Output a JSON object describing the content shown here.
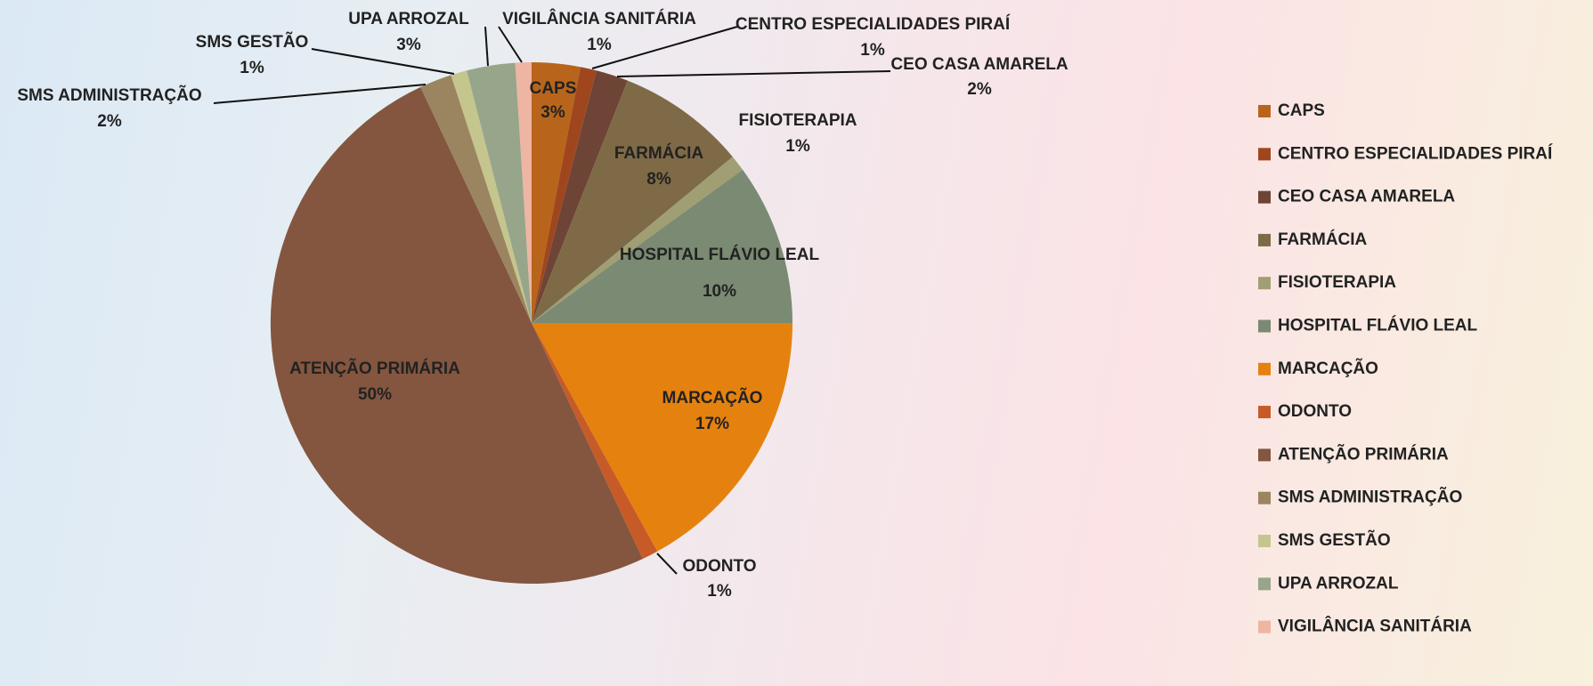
{
  "chart_data": {
    "type": "pie",
    "categories": [
      "CAPS",
      "CENTRO ESPECIALIDADES PIRAÍ",
      "CEO CASA AMARELA",
      "FARMÁCIA",
      "FISIOTERAPIA",
      "HOSPITAL FLÁVIO LEAL",
      "MARCAÇÃO",
      "ODONTO",
      "ATENÇÃO PRIMÁRIA",
      "SMS ADMINISTRAÇÃO",
      "SMS GESTÃO",
      "UPA ARROZAL",
      "VIGILÂNCIA SANITÁRIA"
    ],
    "values": [
      3,
      1,
      2,
      8,
      1,
      10,
      17,
      1,
      50,
      2,
      1,
      3,
      1
    ],
    "value_labels": [
      "3%",
      "1%",
      "2%",
      "8%",
      "1%",
      "10%",
      "17%",
      "1%",
      "50%",
      "2%",
      "1%",
      "3%",
      "1%"
    ],
    "colors": [
      "#b8651b",
      "#a0461f",
      "#6e4436",
      "#7e6a46",
      "#a09f73",
      "#7b8a72",
      "#e5820f",
      "#c65b28",
      "#84563f",
      "#9b8560",
      "#c5c58e",
      "#97a58a",
      "#eeb5a3"
    ],
    "legend": "right"
  }
}
